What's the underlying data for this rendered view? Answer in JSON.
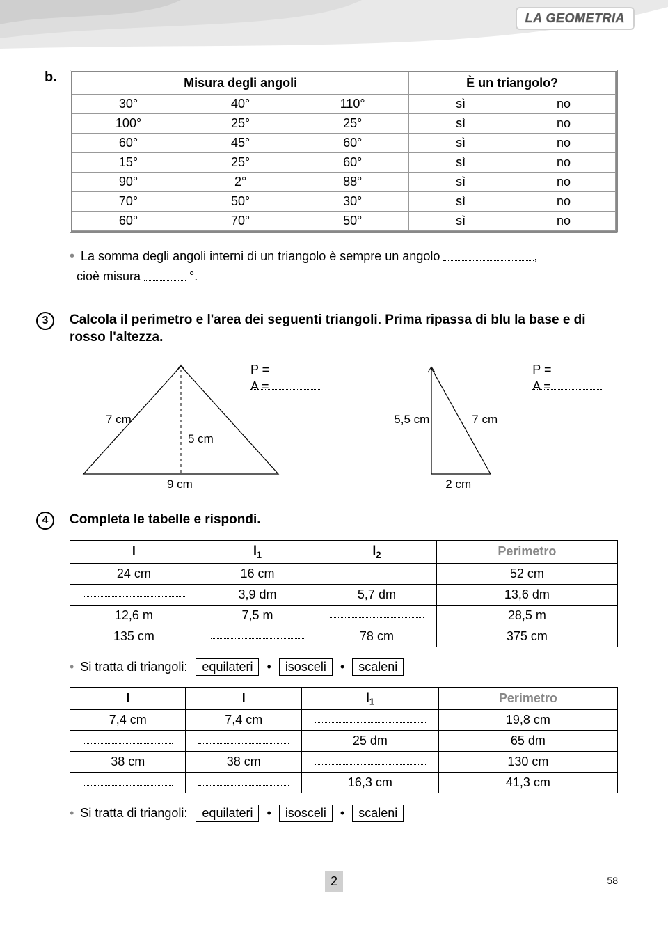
{
  "header": {
    "tab": "LA GEOMETRIA"
  },
  "b": {
    "label": "b.",
    "h_measure": "Misura degli angoli",
    "h_isTriangle": "È un triangolo?",
    "rows": [
      {
        "a": [
          "30°",
          "40°",
          "110°"
        ],
        "y": "sì",
        "n": "no"
      },
      {
        "a": [
          "100°",
          "25°",
          "25°"
        ],
        "y": "sì",
        "n": "no"
      },
      {
        "a": [
          "60°",
          "45°",
          "60°"
        ],
        "y": "sì",
        "n": "no"
      },
      {
        "a": [
          "15°",
          "25°",
          "60°"
        ],
        "y": "sì",
        "n": "no"
      },
      {
        "a": [
          "90°",
          "2°",
          "88°"
        ],
        "y": "sì",
        "n": "no"
      },
      {
        "a": [
          "70°",
          "50°",
          "30°"
        ],
        "y": "sì",
        "n": "no"
      },
      {
        "a": [
          "60°",
          "70°",
          "50°"
        ],
        "y": "sì",
        "n": "no"
      }
    ],
    "sentence1a": "La somma degli angoli interni di un triangolo è sempre un angolo ",
    "sentence1b": ",",
    "sentence2a": "cioè misura ",
    "sentence2b": " °."
  },
  "ex3": {
    "num": "3",
    "title": "Calcola il perimetro e l'area dei seguenti triangoli. Prima ripassa di blu la base e di rosso l'altezza.",
    "fig1": {
      "side": "7 cm",
      "height": "5 cm",
      "base": "9 cm"
    },
    "fig2": {
      "height": "5,5 cm",
      "hyp": "7 cm",
      "base": "2 cm"
    },
    "P": "P =",
    "A": "A ="
  },
  "ex4": {
    "num": "4",
    "title": "Completa le tabelle e rispondi.",
    "t1": {
      "h": [
        "l",
        "l₁",
        "l₂",
        "Perimetro"
      ],
      "r": [
        [
          "24 cm",
          "16 cm",
          "",
          "52 cm"
        ],
        [
          "",
          "3,9 dm",
          "5,7 dm",
          "13,6 dm"
        ],
        [
          "12,6 m",
          "7,5 m",
          "",
          "28,5 m"
        ],
        [
          "135 cm",
          "",
          "78 cm",
          "375 cm"
        ]
      ]
    },
    "t2": {
      "h": [
        "l",
        "l",
        "l₁",
        "Perimetro"
      ],
      "r": [
        [
          "7,4 cm",
          "7,4 cm",
          "",
          "19,8 cm"
        ],
        [
          "",
          "",
          "25 dm",
          "65 dm"
        ],
        [
          "38 cm",
          "38 cm",
          "",
          "130 cm"
        ],
        [
          "",
          "",
          "16,3 cm",
          "41,3 cm"
        ]
      ]
    },
    "types_lead": "Si tratta di triangoli:",
    "opts": [
      "equilateri",
      "isosceli",
      "scaleni"
    ]
  },
  "footer": {
    "page": "2",
    "side": "58"
  },
  "colors": {
    "grey_light": "#e3e3e3",
    "grey_mid": "#d0d0d0",
    "grey_dark": "#a6a6a6",
    "text": "#000000",
    "head_grey": "#888888"
  }
}
